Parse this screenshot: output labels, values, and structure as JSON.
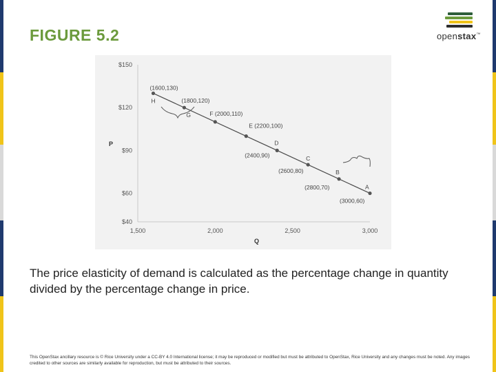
{
  "slide": {
    "title": "FIGURE 5.2",
    "caption": "The price elasticity of demand is calculated as the percentage change in quantity divided by the percentage change in price.",
    "footer": "This OpenStax ancillary resource is © Rice University under a CC-BY 4.0 International license; it may be reproduced or modified but must be attributed to OpenStax, Rice University and any changes must be noted. Any images credited to other sources are similarly available for reproduction, but must be attributed to their sources.",
    "edge_colors": [
      "#1f3a6e",
      "#f0c419",
      "#d9d9d9",
      "#1f3a6e",
      "#f0c419"
    ]
  },
  "logo": {
    "text_regular": "open",
    "text_bold": "stax",
    "mark": "™",
    "book_colors": [
      "#2e5e3a",
      "#6b9a3c",
      "#f0c419",
      "#2d2d2d"
    ]
  },
  "chart_data": {
    "type": "line",
    "title": "",
    "xlabel": "Q",
    "ylabel": "P",
    "xlim": [
      1500,
      3000
    ],
    "ylim": [
      40,
      150
    ],
    "x_ticks": [
      1500,
      2000,
      2500,
      3000
    ],
    "x_tick_labels": [
      "1,500",
      "2,000",
      "2,500",
      "3,000"
    ],
    "y_ticks": [
      40,
      60,
      90,
      120,
      150
    ],
    "y_tick_labels": [
      "$40",
      "$60",
      "$90",
      "$120",
      "$150"
    ],
    "grid": false,
    "plot_background": "#f2f2f2",
    "line_color": "#4a4a4a",
    "points": [
      {
        "letter": "H",
        "x": 1600,
        "y": 130,
        "label": "(1600,130)"
      },
      {
        "letter": "G",
        "x": 1800,
        "y": 120,
        "label": "(1800,120)"
      },
      {
        "letter": "F",
        "x": 2000,
        "y": 110,
        "label": "F (2000,110)"
      },
      {
        "letter": "E",
        "x": 2200,
        "y": 100,
        "label": "E (2200,100)"
      },
      {
        "letter": "D",
        "x": 2400,
        "y": 90,
        "label": "(2400,90)"
      },
      {
        "letter": "C",
        "x": 2600,
        "y": 80,
        "label": "(2600,80)"
      },
      {
        "letter": "B",
        "x": 2800,
        "y": 70,
        "label": "(2800,70)"
      },
      {
        "letter": "A",
        "x": 3000,
        "y": 60,
        "label": "(3000,60)"
      }
    ]
  }
}
